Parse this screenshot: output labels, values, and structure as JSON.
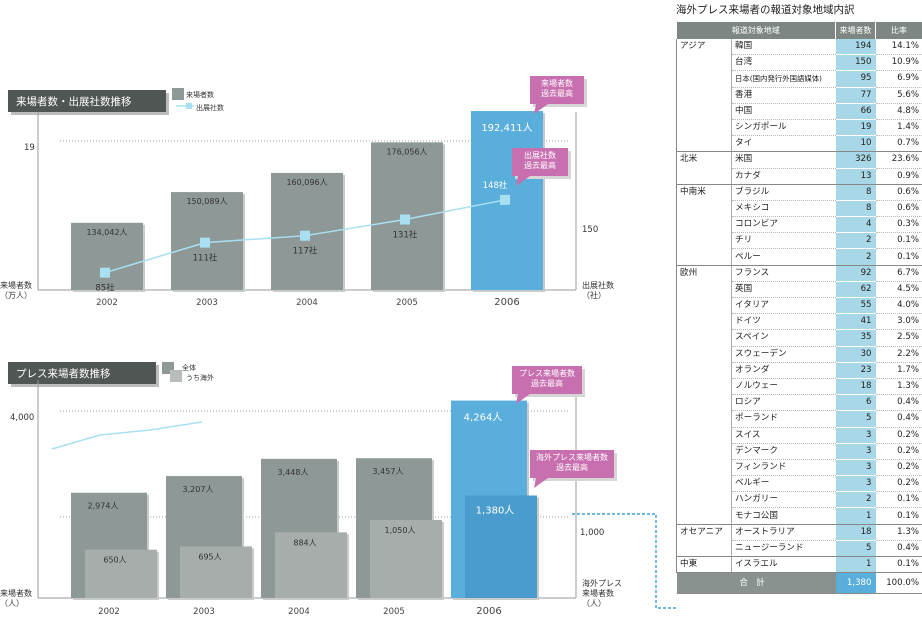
{
  "chart_data": [
    {
      "type": "bar",
      "title": "来場者数・出展社数推移",
      "categories": [
        "2002",
        "2003",
        "2004",
        "2005",
        "2006"
      ],
      "series": [
        {
          "name": "来場者数",
          "values": [
            134042,
            150089,
            160096,
            176056,
            192411
          ],
          "labels": [
            "134,042人",
            "150,089人",
            "160,096人",
            "176,056人",
            "192,411人"
          ]
        },
        {
          "name": "出展社数",
          "type": "line",
          "values": [
            85,
            111,
            117,
            131,
            148
          ],
          "labels": [
            "85社",
            "111社",
            "117社",
            "131社",
            "148社"
          ]
        }
      ],
      "legend": [
        "来場者数",
        "出展社数"
      ],
      "ylabel": "来場者数\n（万人）",
      "y2label": "出展社数\n（社）",
      "yticks": [
        "19"
      ],
      "y2ticks": [
        "150"
      ],
      "annotations": [
        "来場者数\n過去最高",
        "出展社数\n過去最高"
      ],
      "legend_position": "top-left"
    },
    {
      "type": "bar",
      "title": "プレス来場者数推移",
      "categories": [
        "2002",
        "2003",
        "2004",
        "2005",
        "2006"
      ],
      "series": [
        {
          "name": "全体",
          "values": [
            2974,
            3207,
            3448,
            3457,
            4264
          ],
          "labels": [
            "2,974人",
            "3,207人",
            "3,448人",
            "3,457人",
            "4,264人"
          ]
        },
        {
          "name": "うち海外",
          "values": [
            650,
            695,
            884,
            1050,
            1380
          ],
          "labels": [
            "650人",
            "695人",
            "884人",
            "1,050人",
            "1,380人"
          ]
        }
      ],
      "legend": [
        "全体",
        "うち海外"
      ],
      "ylabel": "来場者数\n（人）",
      "y2label": "海外プレス\n来場者数\n（人）",
      "yticks": [
        "4,000"
      ],
      "y2ticks": [
        "1,000"
      ],
      "annotations": [
        "プレス来場者数\n過去最高",
        "海外プレス来場者数\n過去最高"
      ],
      "legend_position": "top-left"
    },
    {
      "type": "table",
      "title": "海外プレス来場者の報道対象地域内訳",
      "columns": [
        "報道対象地域",
        "来場者数",
        "比率"
      ],
      "groups": [
        {
          "region": "アジア",
          "rows": [
            [
              "韓国",
              194,
              "14.1%"
            ],
            [
              "台湾",
              150,
              "10.9%"
            ],
            [
              "日本(国内発行外国語媒体)",
              95,
              "6.9%"
            ],
            [
              "香港",
              77,
              "5.6%"
            ],
            [
              "中国",
              66,
              "4.8%"
            ],
            [
              "シンガポール",
              19,
              "1.4%"
            ],
            [
              "タイ",
              10,
              "0.7%"
            ]
          ]
        },
        {
          "region": "北米",
          "rows": [
            [
              "米国",
              326,
              "23.6%"
            ],
            [
              "カナダ",
              13,
              "0.9%"
            ]
          ]
        },
        {
          "region": "中南米",
          "rows": [
            [
              "ブラジル",
              8,
              "0.6%"
            ],
            [
              "メキシコ",
              8,
              "0.6%"
            ],
            [
              "コロンビア",
              4,
              "0.3%"
            ],
            [
              "チリ",
              2,
              "0.1%"
            ],
            [
              "ペルー",
              2,
              "0.1%"
            ]
          ]
        },
        {
          "region": "欧州",
          "rows": [
            [
              "フランス",
              92,
              "6.7%"
            ],
            [
              "英国",
              62,
              "4.5%"
            ],
            [
              "イタリア",
              55,
              "4.0%"
            ],
            [
              "ドイツ",
              41,
              "3.0%"
            ],
            [
              "スペイン",
              35,
              "2.5%"
            ],
            [
              "スウェーデン",
              30,
              "2.2%"
            ],
            [
              "オランダ",
              23,
              "1.7%"
            ],
            [
              "ノルウェー",
              18,
              "1.3%"
            ],
            [
              "ロシア",
              6,
              "0.4%"
            ],
            [
              "ポーランド",
              5,
              "0.4%"
            ],
            [
              "スイス",
              3,
              "0.2%"
            ],
            [
              "デンマーク",
              3,
              "0.2%"
            ],
            [
              "フィンランド",
              3,
              "0.2%"
            ],
            [
              "ベルギー",
              3,
              "0.2%"
            ],
            [
              "ハンガリー",
              2,
              "0.1%"
            ],
            [
              "モナコ公国",
              1,
              "0.1%"
            ]
          ]
        },
        {
          "region": "オセアニア",
          "rows": [
            [
              "オーストラリア",
              18,
              "1.3%"
            ],
            [
              "ニュージーランド",
              5,
              "0.4%"
            ]
          ]
        },
        {
          "region": "中東",
          "rows": [
            [
              "イスラエル",
              1,
              "0.1%"
            ]
          ]
        }
      ],
      "total": {
        "label": "合計",
        "count": "1,380",
        "ratio": "100.0%"
      }
    }
  ],
  "colors": {
    "bar_gray": "#8e9896",
    "bar_gray_dark": "#6f7876",
    "bar_highlight": "#5aaedb",
    "marker": "#a8e0f2",
    "callout": "#c86fb0",
    "title_box": "#505654",
    "table_header": "#7d8683",
    "count_cell": "#a8d8e8",
    "arrow": "#3aa0d8"
  }
}
